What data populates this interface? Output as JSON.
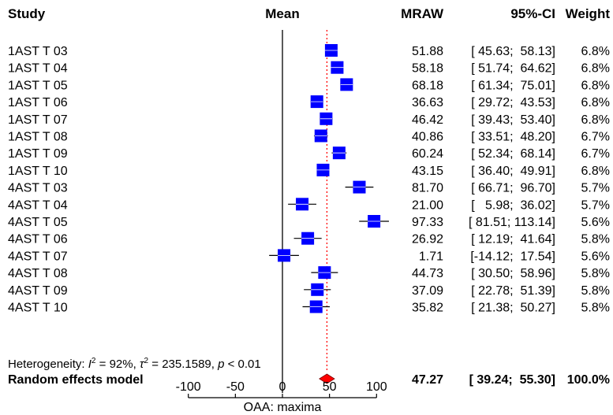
{
  "headers": {
    "study": "Study",
    "mean": "Mean",
    "mraw": "MRAW",
    "ci": "95%-CI",
    "weight": "Weight"
  },
  "chart_data": {
    "type": "forest",
    "xlabel": "OAA: maxima",
    "xlim": [
      -100,
      100
    ],
    "xticks": [
      -100,
      -50,
      0,
      50,
      100
    ],
    "null_value": 0,
    "colors": {
      "box": "#0000ff",
      "diamond": "#ff0000",
      "pooled_line": "#ff0000",
      "line": "#000000"
    },
    "studies": [
      {
        "label": "1AST T 03",
        "mean": 51.88,
        "lower": 45.63,
        "upper": 58.13,
        "mraw_text": "51.88",
        "ci_text": "[ 45.63;  58.13]",
        "weight_text": "6.8%"
      },
      {
        "label": "1AST T 04",
        "mean": 58.18,
        "lower": 51.74,
        "upper": 64.62,
        "mraw_text": "58.18",
        "ci_text": "[ 51.74;  64.62]",
        "weight_text": "6.8%"
      },
      {
        "label": "1AST T 05",
        "mean": 68.18,
        "lower": 61.34,
        "upper": 75.01,
        "mraw_text": "68.18",
        "ci_text": "[ 61.34;  75.01]",
        "weight_text": "6.8%"
      },
      {
        "label": "1AST T 06",
        "mean": 36.63,
        "lower": 29.72,
        "upper": 43.53,
        "mraw_text": "36.63",
        "ci_text": "[ 29.72;  43.53]",
        "weight_text": "6.8%"
      },
      {
        "label": "1AST T 07",
        "mean": 46.42,
        "lower": 39.43,
        "upper": 53.4,
        "mraw_text": "46.42",
        "ci_text": "[ 39.43;  53.40]",
        "weight_text": "6.8%"
      },
      {
        "label": "1AST T 08",
        "mean": 40.86,
        "lower": 33.51,
        "upper": 48.2,
        "mraw_text": "40.86",
        "ci_text": "[ 33.51;  48.20]",
        "weight_text": "6.7%"
      },
      {
        "label": "1AST T 09",
        "mean": 60.24,
        "lower": 52.34,
        "upper": 68.14,
        "mraw_text": "60.24",
        "ci_text": "[ 52.34;  68.14]",
        "weight_text": "6.7%"
      },
      {
        "label": "1AST T 10",
        "mean": 43.15,
        "lower": 36.4,
        "upper": 49.91,
        "mraw_text": "43.15",
        "ci_text": "[ 36.40;  49.91]",
        "weight_text": "6.8%"
      },
      {
        "label": "4AST T 03",
        "mean": 81.7,
        "lower": 66.71,
        "upper": 96.7,
        "mraw_text": "81.70",
        "ci_text": "[ 66.71;  96.70]",
        "weight_text": "5.7%"
      },
      {
        "label": "4AST T 04",
        "mean": 21.0,
        "lower": 5.98,
        "upper": 36.02,
        "mraw_text": "21.00",
        "ci_text": "[   5.98;  36.02]",
        "weight_text": "5.7%"
      },
      {
        "label": "4AST T 05",
        "mean": 97.33,
        "lower": 81.51,
        "upper": 113.14,
        "mraw_text": "97.33",
        "ci_text": "[ 81.51; 113.14]",
        "weight_text": "5.6%"
      },
      {
        "label": "4AST T 06",
        "mean": 26.92,
        "lower": 12.19,
        "upper": 41.64,
        "mraw_text": "26.92",
        "ci_text": "[ 12.19;  41.64]",
        "weight_text": "5.8%"
      },
      {
        "label": "4AST T 07",
        "mean": 1.71,
        "lower": -14.12,
        "upper": 17.54,
        "mraw_text": "1.71",
        "ci_text": "[-14.12;  17.54]",
        "weight_text": "5.6%"
      },
      {
        "label": "4AST T 08",
        "mean": 44.73,
        "lower": 30.5,
        "upper": 58.96,
        "mraw_text": "44.73",
        "ci_text": "[ 30.50;  58.96]",
        "weight_text": "5.8%"
      },
      {
        "label": "4AST T 09",
        "mean": 37.09,
        "lower": 22.78,
        "upper": 51.39,
        "mraw_text": "37.09",
        "ci_text": "[ 22.78;  51.39]",
        "weight_text": "5.8%"
      },
      {
        "label": "4AST T 10",
        "mean": 35.82,
        "lower": 21.38,
        "upper": 50.27,
        "mraw_text": "35.82",
        "ci_text": "[ 21.38;  50.27]",
        "weight_text": "5.8%"
      }
    ],
    "pooled": {
      "label": "Random effects model",
      "mean": 47.27,
      "lower": 39.24,
      "upper": 55.3,
      "mraw_text": "47.27",
      "ci_text": "[ 39.24;  55.30]",
      "weight_text": "100.0%"
    },
    "heterogeneity": {
      "prefix": "Heterogeneity: ",
      "i2_symbol": "I",
      "i2_value": " = 92%, ",
      "tau_symbol": "τ",
      "tau_value": " = 235.1589, ",
      "p_symbol": "p",
      "p_value": " < 0.01"
    }
  }
}
